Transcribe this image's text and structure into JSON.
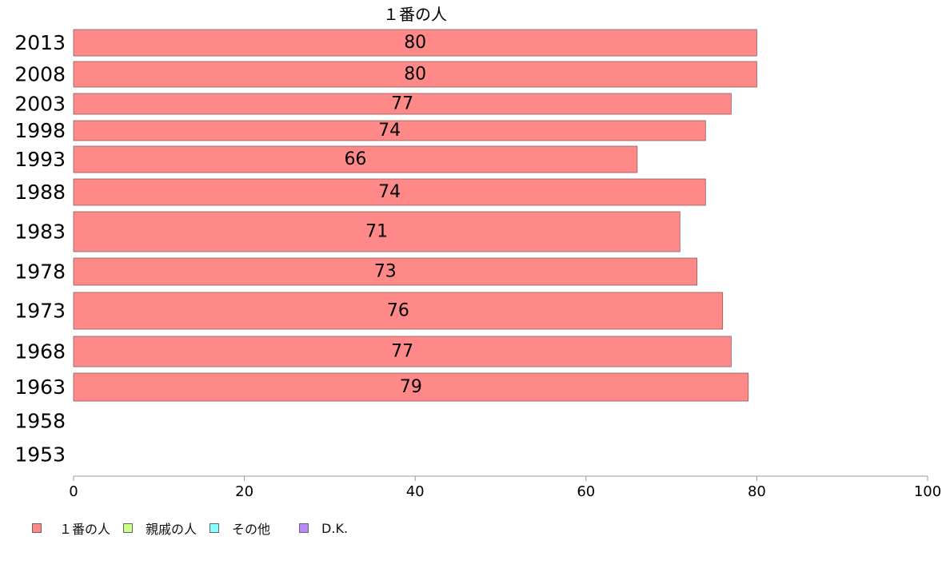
{
  "chart_data": {
    "type": "bar",
    "orientation": "horizontal",
    "title": "１番の人",
    "categories": [
      "2013",
      "2008",
      "2003",
      "1998",
      "1993",
      "1988",
      "1983",
      "1978",
      "1973",
      "1968",
      "1963",
      "1958",
      "1953"
    ],
    "series": [
      {
        "name": "１番の人",
        "color": "#ff8888",
        "values": [
          80,
          80,
          77,
          74,
          66,
          74,
          71,
          73,
          76,
          77,
          79,
          null,
          null
        ],
        "labels": [
          "80",
          "80",
          "77",
          "74",
          "66",
          "74",
          "71",
          "73",
          "76",
          "77",
          "79",
          "",
          ""
        ]
      }
    ],
    "xlim": [
      0,
      100
    ],
    "xticks": [
      "0",
      "20",
      "40",
      "60",
      "80",
      "100"
    ],
    "grid": false,
    "legend_position": "bottom-left",
    "legend": [
      {
        "label": "１番の人",
        "color": "#ff8888"
      },
      {
        "label": "親戚の人",
        "color": "#ccff88"
      },
      {
        "label": "その他",
        "color": "#88ffff"
      },
      {
        "label": "D.K.",
        "color": "#bb88ff"
      }
    ]
  }
}
